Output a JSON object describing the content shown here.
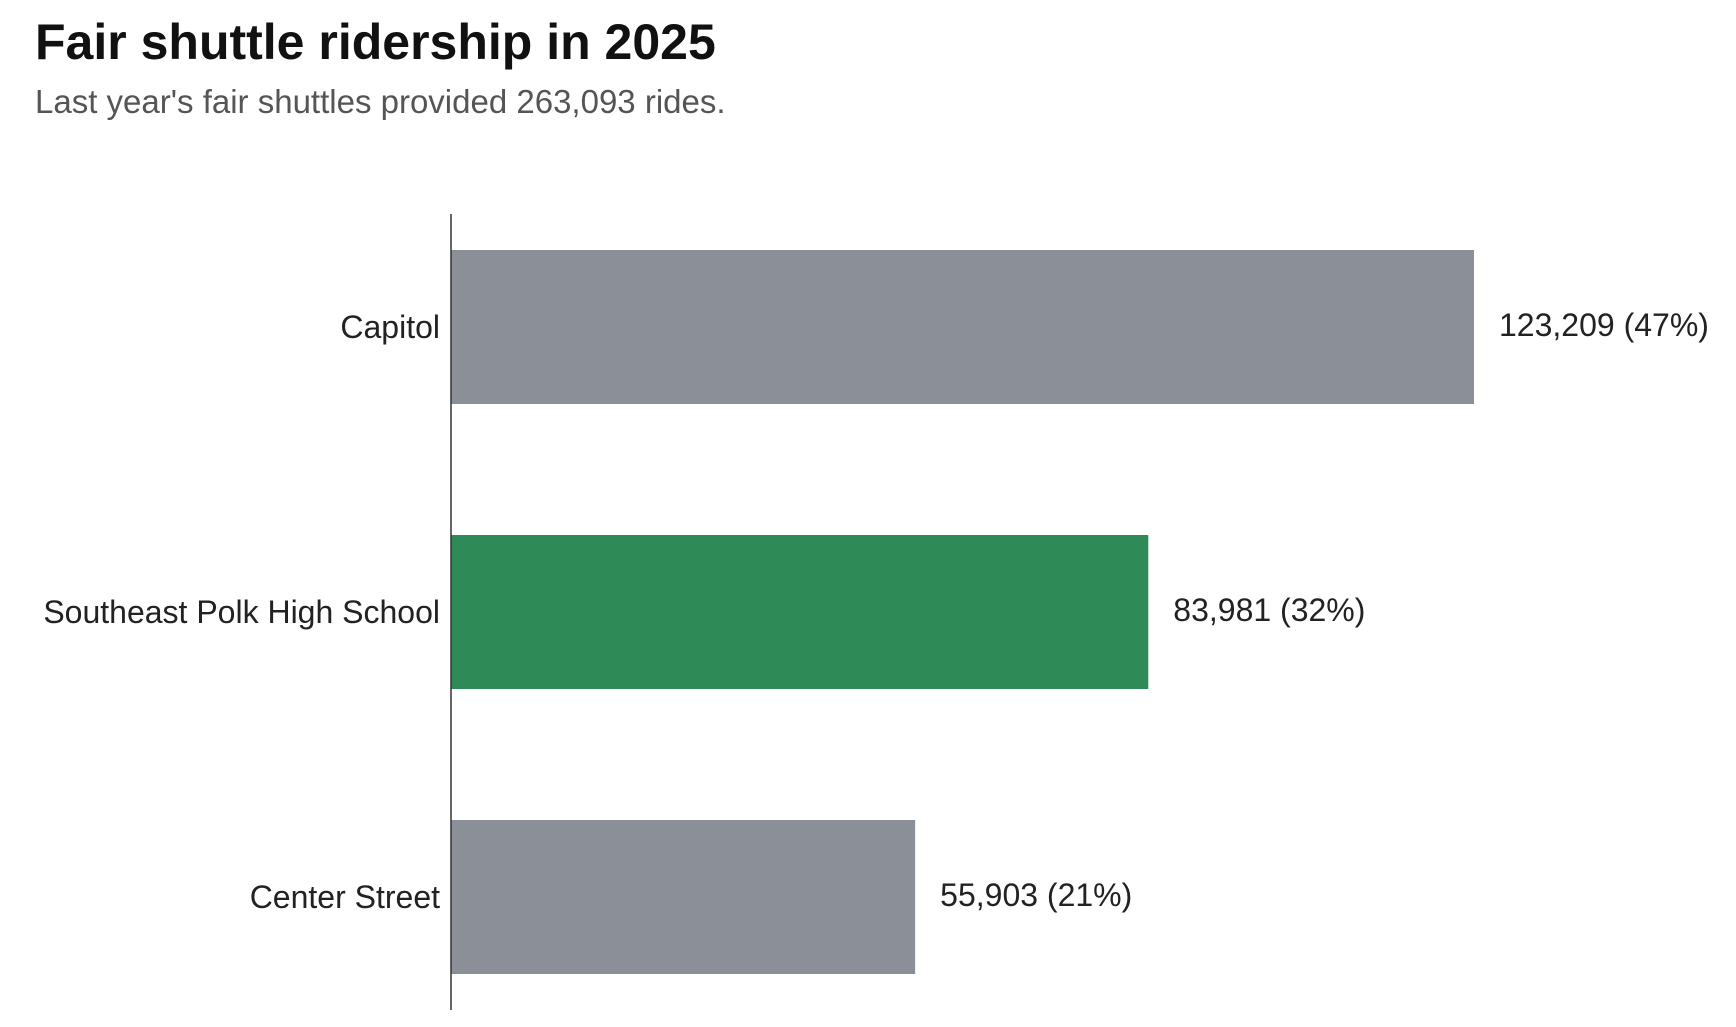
{
  "header": {
    "title": "Fair shuttle ridership in 2025",
    "subtitle": "Last year's fair shuttles provided 263,093 rides."
  },
  "colors": {
    "default_bar": "#8b8f98",
    "highlight_bar": "#2e8b57",
    "axis": "#333333"
  },
  "chart_data": {
    "type": "bar",
    "orientation": "horizontal",
    "categories": [
      "Capitol",
      "Southeast Polk High School",
      "Center Street"
    ],
    "values": [
      123209,
      83981,
      55903
    ],
    "data_labels": [
      "123,209 (47%)",
      "83,981 (32%)",
      "55,903 (21%)"
    ],
    "highlighted_category": "Southeast Polk High School",
    "xlim": [
      0,
      123209
    ],
    "grid": false,
    "legend": "none"
  }
}
